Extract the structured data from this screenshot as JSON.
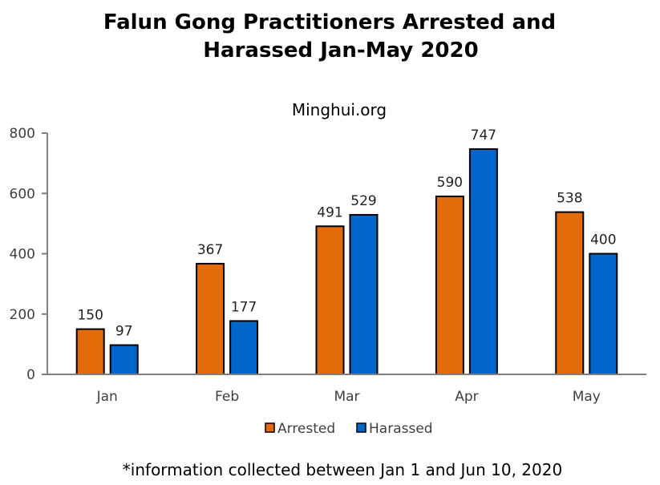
{
  "chart_data": {
    "type": "bar",
    "title_lines": [
      "Falun Gong Practitioners Arrested and",
      "Harassed Jan-May 2020"
    ],
    "subtitle": "Minghui.org",
    "categories": [
      "Jan",
      "Feb",
      "Mar",
      "Apr",
      "May"
    ],
    "series": [
      {
        "name": "Arrested",
        "values": [
          150,
          367,
          491,
          590,
          538
        ],
        "color": "#E36C0A"
      },
      {
        "name": "Harassed",
        "values": [
          97,
          177,
          529,
          747,
          400
        ],
        "color": "#0066CC"
      }
    ],
    "ylim": [
      0,
      800
    ],
    "yticks": [
      0,
      200,
      400,
      600,
      800
    ],
    "xlabel": "",
    "ylabel": "",
    "grid": false,
    "legend": "bottom",
    "footnote": "*information collected between Jan 1 and Jun 10, 2020"
  }
}
